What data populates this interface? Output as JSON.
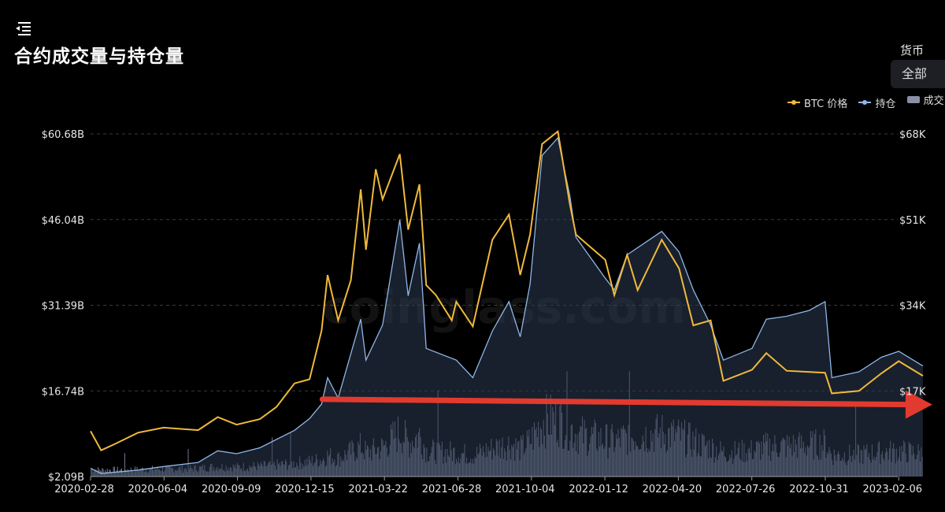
{
  "header": {
    "title": "合约成交量与持仓量",
    "menu_icon": "indent-menu-icon"
  },
  "currency": {
    "label": "货币",
    "selected": "全部"
  },
  "legend": [
    {
      "name": "BTC 价格",
      "color": "#f0b93b"
    },
    {
      "name": "持仓",
      "color": "#8fb7e8"
    },
    {
      "name": "成交",
      "color": "#8a8fa6"
    }
  ],
  "watermark": "coinglass.com",
  "chart_data": {
    "type": "line",
    "x_labels": [
      "2020-02-28",
      "2020-06-04",
      "2020-09-09",
      "2020-12-15",
      "2021-03-22",
      "2021-06-28",
      "2021-10-04",
      "2022-01-12",
      "2022-04-20",
      "2022-07-26",
      "2022-10-31",
      "2023-02-06"
    ],
    "y_left_ticks": [
      "$60.68B",
      "$46.04B",
      "$31.39B",
      "$16.74B",
      "$2.09B"
    ],
    "y_right_ticks": [
      "$68K",
      "$51K",
      "$34K",
      "$17K"
    ],
    "y_left_range": [
      2.09,
      60.68
    ],
    "y_right_range": [
      0,
      68000
    ],
    "series": [
      {
        "name": "BTC 价格",
        "color": "#f0b93b",
        "points": [
          [
            "2020-02-28",
            9000
          ],
          [
            "2020-03-13",
            5200
          ],
          [
            "2020-04-01",
            6500
          ],
          [
            "2020-05-01",
            8700
          ],
          [
            "2020-06-04",
            9700
          ],
          [
            "2020-07-20",
            9200
          ],
          [
            "2020-08-15",
            11800
          ],
          [
            "2020-09-09",
            10300
          ],
          [
            "2020-10-10",
            11400
          ],
          [
            "2020-11-01",
            13800
          ],
          [
            "2020-11-25",
            18500
          ],
          [
            "2020-12-15",
            19300
          ],
          [
            "2020-12-31",
            29000
          ],
          [
            "2021-01-08",
            40000
          ],
          [
            "2021-01-22",
            31000
          ],
          [
            "2021-02-08",
            39000
          ],
          [
            "2021-02-21",
            57000
          ],
          [
            "2021-02-28",
            45000
          ],
          [
            "2021-03-13",
            61000
          ],
          [
            "2021-03-22",
            55000
          ],
          [
            "2021-04-14",
            64000
          ],
          [
            "2021-04-25",
            49000
          ],
          [
            "2021-05-10",
            58000
          ],
          [
            "2021-05-19",
            38000
          ],
          [
            "2021-06-01",
            36000
          ],
          [
            "2021-06-22",
            31000
          ],
          [
            "2021-06-28",
            34700
          ],
          [
            "2021-07-20",
            29800
          ],
          [
            "2021-08-15",
            47000
          ],
          [
            "2021-09-06",
            52000
          ],
          [
            "2021-09-21",
            40000
          ],
          [
            "2021-10-04",
            48000
          ],
          [
            "2021-10-20",
            66000
          ],
          [
            "2021-11-10",
            68500
          ],
          [
            "2021-11-26",
            54000
          ],
          [
            "2021-12-04",
            48000
          ],
          [
            "2022-01-12",
            43000
          ],
          [
            "2022-01-24",
            36000
          ],
          [
            "2022-02-10",
            44000
          ],
          [
            "2022-02-24",
            37000
          ],
          [
            "2022-03-28",
            47000
          ],
          [
            "2022-04-20",
            41300
          ],
          [
            "2022-05-09",
            30000
          ],
          [
            "2022-06-01",
            31000
          ],
          [
            "2022-06-18",
            19000
          ],
          [
            "2022-07-26",
            21200
          ],
          [
            "2022-08-14",
            24500
          ],
          [
            "2022-09-10",
            21000
          ],
          [
            "2022-10-31",
            20600
          ],
          [
            "2022-11-09",
            16500
          ],
          [
            "2022-12-15",
            17000
          ],
          [
            "2023-01-14",
            20500
          ],
          [
            "2023-02-06",
            22900
          ],
          [
            "2023-03-10",
            20000
          ]
        ]
      },
      {
        "name": "持仓",
        "color": "#8fb7e8",
        "points": [
          [
            "2020-02-28",
            3.5
          ],
          [
            "2020-03-13",
            2.6
          ],
          [
            "2020-05-01",
            3.2
          ],
          [
            "2020-06-04",
            3.8
          ],
          [
            "2020-07-20",
            4.5
          ],
          [
            "2020-08-15",
            6.5
          ],
          [
            "2020-09-09",
            6.0
          ],
          [
            "2020-10-10",
            7.0
          ],
          [
            "2020-11-25",
            10.0
          ],
          [
            "2020-12-15",
            12.0
          ],
          [
            "2020-12-31",
            14.5
          ],
          [
            "2021-01-08",
            19.0
          ],
          [
            "2021-01-22",
            15.5
          ],
          [
            "2021-02-21",
            29.0
          ],
          [
            "2021-02-28",
            22.0
          ],
          [
            "2021-03-22",
            28.0
          ],
          [
            "2021-04-14",
            46.0
          ],
          [
            "2021-04-25",
            33.0
          ],
          [
            "2021-05-10",
            42.0
          ],
          [
            "2021-05-19",
            24.0
          ],
          [
            "2021-06-28",
            22.0
          ],
          [
            "2021-07-20",
            19.0
          ],
          [
            "2021-08-15",
            27.0
          ],
          [
            "2021-09-06",
            32.0
          ],
          [
            "2021-09-21",
            26.0
          ],
          [
            "2021-10-04",
            35.0
          ],
          [
            "2021-10-20",
            57.0
          ],
          [
            "2021-11-10",
            60.0
          ],
          [
            "2021-11-26",
            50.0
          ],
          [
            "2021-12-04",
            43.0
          ],
          [
            "2022-01-12",
            36.0
          ],
          [
            "2022-01-24",
            34.0
          ],
          [
            "2022-02-10",
            40.0
          ],
          [
            "2022-03-28",
            44.0
          ],
          [
            "2022-04-20",
            40.5
          ],
          [
            "2022-05-09",
            34.0
          ],
          [
            "2022-06-01",
            28.0
          ],
          [
            "2022-06-18",
            22.0
          ],
          [
            "2022-07-26",
            24.0
          ],
          [
            "2022-08-14",
            29.0
          ],
          [
            "2022-09-10",
            29.5
          ],
          [
            "2022-10-10",
            30.5
          ],
          [
            "2022-10-31",
            32.0
          ],
          [
            "2022-11-09",
            19.0
          ],
          [
            "2022-12-15",
            20.0
          ],
          [
            "2023-01-14",
            22.5
          ],
          [
            "2023-02-06",
            23.5
          ],
          [
            "2023-03-10",
            21.0
          ]
        ]
      }
    ],
    "volume": {
      "name": "成交",
      "color": "#8a8fa6",
      "range_billion": [
        0,
        18
      ]
    },
    "annotation": {
      "type": "arrow",
      "color": "#e23a2e",
      "from": [
        "2021-01-01",
        15.3
      ],
      "to": [
        "2023-03-10",
        14.4
      ]
    },
    "grid": true
  }
}
